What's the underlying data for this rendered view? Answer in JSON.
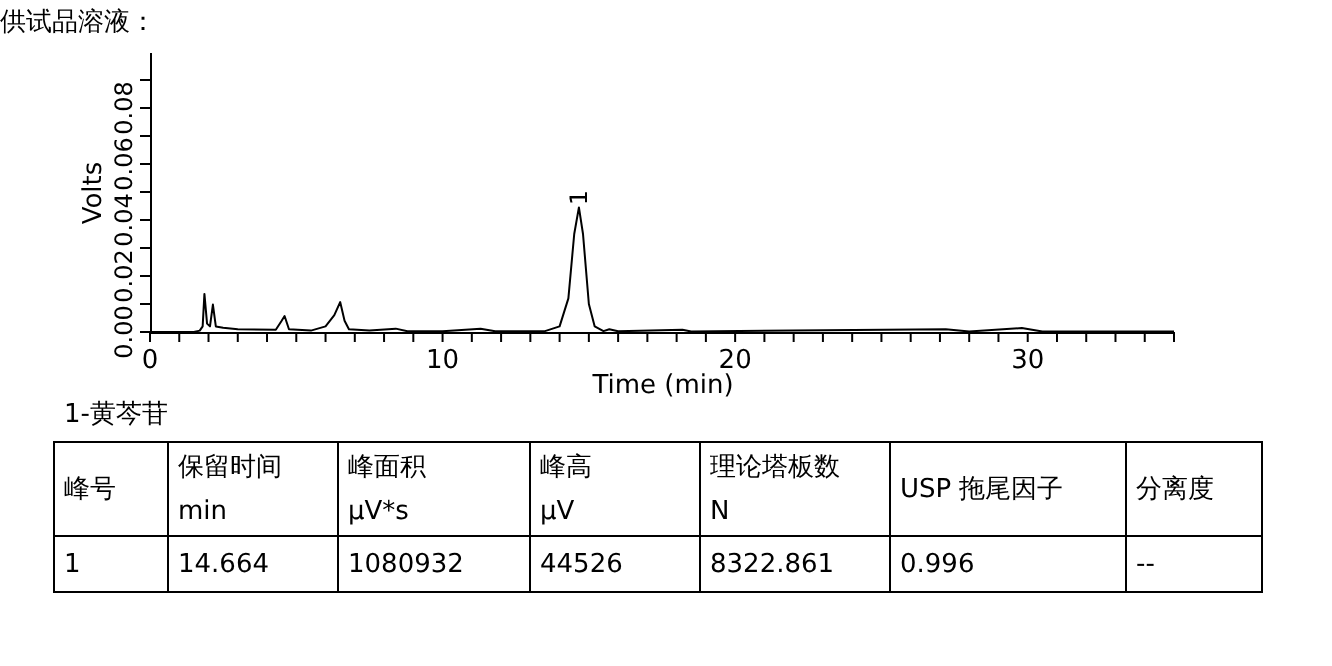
{
  "chart_data": {
    "type": "line",
    "title": "供试品溶液：",
    "xlabel": "Time (min)",
    "ylabel": "Volts",
    "x": [
      0,
      1.5,
      1.7,
      1.8,
      1.86,
      1.95,
      2.05,
      2.15,
      2.25,
      2.5,
      3,
      4.3,
      4.5,
      4.6,
      4.75,
      5.5,
      6.0,
      6.3,
      6.5,
      6.65,
      6.8,
      7.5,
      8.4,
      8.8,
      10,
      11.3,
      11.8,
      13.5,
      14.0,
      14.3,
      14.5,
      14.66,
      14.8,
      15.0,
      15.2,
      15.5,
      15.7,
      16,
      18.2,
      18.5,
      27.2,
      28,
      29.8,
      30.5,
      35
    ],
    "series": [
      {
        "color": "#000000",
        "values": [
          0,
          0,
          0.0005,
          0.002,
          0.0136,
          0.003,
          0.002,
          0.0098,
          0.002,
          0.0015,
          0.001,
          0.0008,
          0.004,
          0.0057,
          0.001,
          0.0005,
          0.002,
          0.006,
          0.0107,
          0.004,
          0.001,
          0.0005,
          0.0012,
          0.0003,
          0.0003,
          0.0012,
          0.0003,
          0.0003,
          0.002,
          0.012,
          0.035,
          0.0445,
          0.035,
          0.01,
          0.002,
          0.0003,
          0.001,
          0.0003,
          0.0008,
          0.0002,
          0.001,
          0.0002,
          0.0014,
          0.0002,
          0.0002
        ]
      }
    ],
    "xlim": [
      0,
      35
    ],
    "ylim": [
      0,
      0.1
    ],
    "xticks": [
      0,
      {
        "value": 1,
        "label": null
      },
      {
        "value": 2,
        "label": null
      },
      {
        "value": 3,
        "label": null
      },
      {
        "value": 4,
        "label": null
      },
      {
        "value": 5,
        "label": null
      },
      {
        "value": 6,
        "label": null
      },
      {
        "value": 7,
        "label": null
      },
      {
        "value": 8,
        "label": null
      },
      {
        "value": 9,
        "label": null
      },
      10,
      {
        "value": 11,
        "label": null
      },
      {
        "value": 12,
        "label": null
      },
      {
        "value": 13,
        "label": null
      },
      {
        "value": 14,
        "label": null
      },
      {
        "value": 15,
        "label": null
      },
      {
        "value": 16,
        "label": null
      },
      {
        "value": 17,
        "label": null
      },
      {
        "value": 18,
        "label": null
      },
      {
        "value": 19,
        "label": null
      },
      20,
      {
        "value": 21,
        "label": null
      },
      {
        "value": 22,
        "label": null
      },
      {
        "value": 23,
        "label": null
      },
      {
        "value": 24,
        "label": null
      },
      {
        "value": 25,
        "label": null
      },
      {
        "value": 26,
        "label": null
      },
      {
        "value": 27,
        "label": null
      },
      {
        "value": 28,
        "label": null
      },
      {
        "value": 29,
        "label": null
      },
      30,
      {
        "value": 31,
        "label": null
      },
      {
        "value": 32,
        "label": null
      },
      {
        "value": 33,
        "label": null
      },
      {
        "value": 34,
        "label": null
      },
      {
        "value": 35,
        "label": null
      }
    ],
    "yticks": [
      {
        "value": 0,
        "label": "0.00"
      },
      {
        "value": 0.01,
        "label": null
      },
      {
        "value": 0.02,
        "label": "0.02"
      },
      {
        "value": 0.03,
        "label": null
      },
      {
        "value": 0.04,
        "label": "0.04"
      },
      {
        "value": 0.05,
        "label": null
      },
      {
        "value": 0.06,
        "label": "0.06"
      },
      {
        "value": 0.07,
        "label": null
      },
      {
        "value": 0.08,
        "label": "0.08"
      },
      {
        "value": 0.09,
        "label": null
      }
    ],
    "grid": false,
    "legend": false,
    "marker": "none",
    "line_style": "solid",
    "annotations": [
      {
        "text": "1",
        "x": 14.66,
        "y": 0.048
      },
      "1-黄芩苷",
      "峰号",
      "保留时间\nmin",
      "峰面积\nμV*s",
      "峰高\nμV",
      "理论塔板数\nN",
      "USP 拖尾因子",
      "分离度",
      "1",
      "14.664",
      "1080932",
      "44526",
      "8322.861",
      "0.996",
      "--"
    ]
  }
}
